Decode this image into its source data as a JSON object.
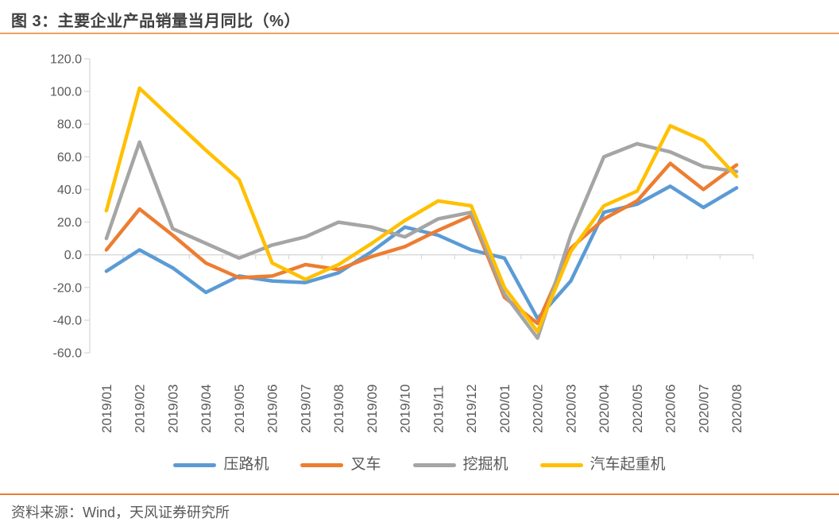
{
  "header": {
    "title": "图 3：主要企业产品销量当月同比（%）"
  },
  "footer": {
    "source": "资料来源：Wind，天风证券研究所"
  },
  "colors": {
    "series_road_roller": "#5B9BD5",
    "series_forklift": "#ED7D31",
    "series_excavator": "#A5A5A5",
    "series_truck_crane": "#FFC000",
    "axis_line": "#D9D9D9",
    "axis_text": "#595959",
    "title_text": "#3F3F3F",
    "rule_top": "#EFA05C",
    "rule_bottom": "#ED7D31"
  },
  "chart_data": {
    "type": "line",
    "title": "主要企业产品销量当月同比（%）",
    "xlabel": "",
    "ylabel": "",
    "ylim": [
      -60,
      120
    ],
    "ytick_step": 20,
    "ytick_labels": [
      "120.0",
      "100.0",
      "80.0",
      "60.0",
      "40.0",
      "20.0",
      "0.0",
      "-20.0",
      "-40.0",
      "-60.0"
    ],
    "grid": false,
    "legend_position": "bottom",
    "categories": [
      "2019/01",
      "2019/02",
      "2019/03",
      "2019/04",
      "2019/05",
      "2019/06",
      "2019/07",
      "2019/08",
      "2019/09",
      "2019/10",
      "2019/11",
      "2019/12",
      "2020/01",
      "2020/02",
      "2020/03",
      "2020/04",
      "2020/05",
      "2020/06",
      "2020/07",
      "2020/08"
    ],
    "series": [
      {
        "name": "压路机",
        "color": "#5B9BD5",
        "values": [
          -10,
          3,
          -8,
          -23,
          -13,
          -16,
          -17,
          -11,
          2,
          17,
          12,
          3,
          -2,
          -39,
          -16,
          26,
          31,
          42,
          29,
          41
        ]
      },
      {
        "name": "叉车",
        "color": "#ED7D31",
        "values": [
          3,
          28,
          12,
          -5,
          -14,
          -13,
          -6,
          -9,
          -1,
          5,
          15,
          24,
          -26,
          -42,
          4,
          22,
          33,
          56,
          40,
          55
        ]
      },
      {
        "name": "挖掘机",
        "color": "#A5A5A5",
        "values": [
          10,
          69,
          16,
          7,
          -2,
          6,
          11,
          20,
          17,
          11,
          22,
          26,
          -24,
          -51,
          12,
          60,
          68,
          63,
          54,
          51
        ]
      },
      {
        "name": "汽车起重机",
        "color": "#FFC000",
        "values": [
          27,
          102,
          83,
          64,
          46,
          -5,
          -15,
          -6,
          7,
          21,
          33,
          30,
          -20,
          -47,
          2,
          30,
          39,
          79,
          70,
          48
        ]
      }
    ]
  }
}
